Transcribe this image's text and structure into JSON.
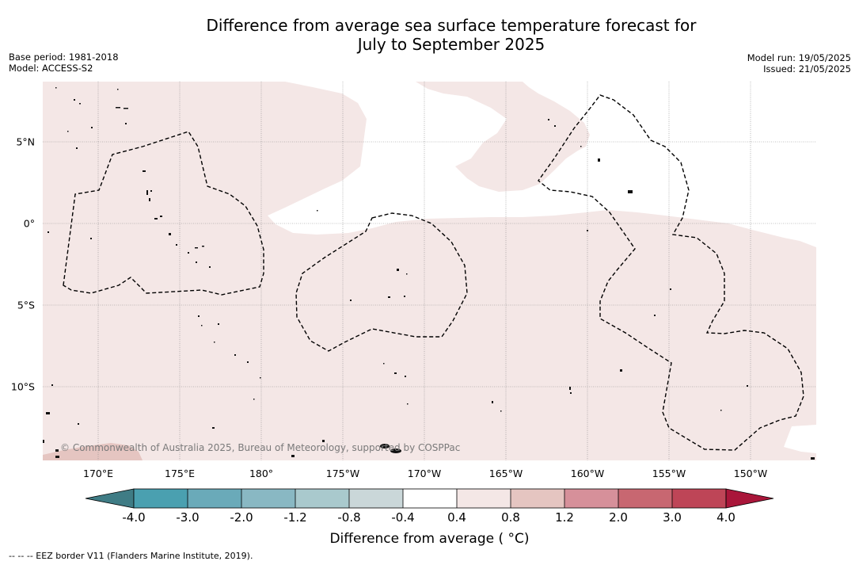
{
  "title": {
    "line1": "Difference from average sea surface temperature forecast for",
    "line2": "July to September 2025"
  },
  "meta_left": {
    "base_period": "Base period: 1981-2018",
    "model": "Model: ACCESS-S2"
  },
  "meta_right": {
    "model_run": "Model run: 19/05/2025",
    "issued": "Issued: 21/05/2025"
  },
  "map": {
    "longitude_labels": [
      "170°E",
      "175°E",
      "180°",
      "175°W",
      "170°W",
      "165°W",
      "160°W",
      "155°W",
      "150°W"
    ],
    "latitude_labels": [
      "5°N",
      "0°",
      "5°S",
      "10°S"
    ],
    "copyright": "© Commonwealth of Australia 2025, Bureau of Meteorology, supported by COSPPac",
    "fill_colors": {
      "slightly_warm": "#f4e7e6",
      "warmer": "#e5c5c1",
      "neutral": "#ffffff"
    }
  },
  "colorbar": {
    "tick_labels": [
      "-4.0",
      "-3.0",
      "-2.0",
      "-1.2",
      "-0.8",
      "-0.4",
      "0.4",
      "0.8",
      "1.2",
      "2.0",
      "3.0",
      "4.0"
    ],
    "colors": [
      "#3f7c85",
      "#4aa0b0",
      "#6aaab9",
      "#89b8c3",
      "#a9c9cd",
      "#cad7d9",
      "#ffffff",
      "#f4e7e6",
      "#e5c5c1",
      "#d6909a",
      "#c86771",
      "#be4557",
      "#a9163a"
    ],
    "title": "Difference from average ( °C)"
  },
  "footnote": "--  --  -- EEZ border V11 (Flanders Marine Institute, 2019)."
}
